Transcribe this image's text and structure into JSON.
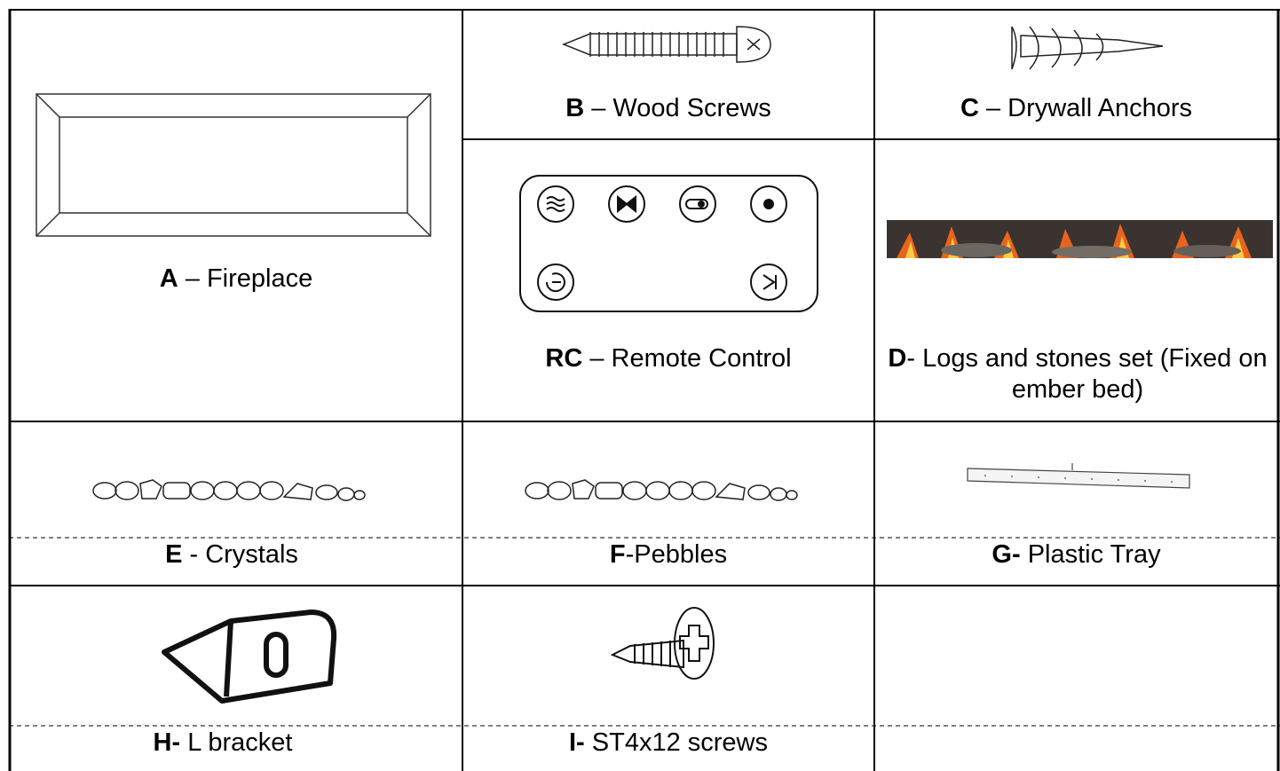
{
  "parts": [
    {
      "code": "A",
      "label": " – Fireplace"
    },
    {
      "code": "B",
      "label": " – Wood Screws"
    },
    {
      "code": "C",
      "label": " – Drywall Anchors"
    },
    {
      "code": "RC",
      "label": " – Remote Control"
    },
    {
      "code": "D",
      "label": "- Logs and stones set (Fixed on ember bed)"
    },
    {
      "code": "E",
      "label": " - Crystals"
    },
    {
      "code": "F",
      "label": "-Pebbles"
    },
    {
      "code": "G-",
      "label": " Plastic Tray"
    },
    {
      "code": "H-",
      "label": " L bracket"
    },
    {
      "code": "I-",
      "label": " ST4x12 screws"
    }
  ]
}
